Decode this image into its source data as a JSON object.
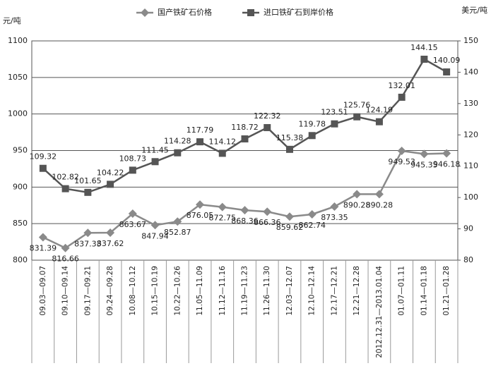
{
  "chart_data": {
    "type": "line",
    "y_axis_label": "元/吨",
    "y2_axis_label": "美元/吨",
    "categories": [
      "09.03—09.07",
      "09.10—09.14",
      "09.17—09.21",
      "09.24—09.28",
      "10.08—10.12",
      "10.15—10.19",
      "10.22—10.26",
      "11.05—11.09",
      "11.12—11.16",
      "11.19—11.23",
      "11.26—11.30",
      "12.03—12.07",
      "12.10—12.14",
      "12.17—12.21",
      "12.21—12.28",
      "2012.12.31—2013.01.04",
      "01.07—01.11",
      "01.14—01.18",
      "01.21—01.28"
    ],
    "series": [
      {
        "name": "国产铁矿石价格",
        "color": "#8a8a8a",
        "marker": "diamond",
        "values": [
          831.39,
          816.66,
          837.33,
          837.62,
          863.67,
          847.94,
          852.87,
          876.05,
          872.75,
          868.36,
          866.36,
          859.62,
          862.74,
          873.35,
          890.28,
          890.28,
          949.53,
          945.35,
          946.18
        ]
      },
      {
        "name": "进口铁矿石到岸价格",
        "color": "#555555",
        "marker": "square",
        "axis": "y2",
        "values": [
          109.32,
          102.82,
          101.65,
          104.22,
          108.73,
          111.45,
          114.28,
          117.79,
          114.12,
          118.72,
          122.32,
          115.38,
          119.78,
          123.51,
          125.76,
          124.19,
          132.01,
          144.15,
          140.09
        ]
      }
    ],
    "ylim": [
      800,
      1100
    ],
    "yticks": [
      800,
      850,
      900,
      950,
      1000,
      1050,
      1100
    ],
    "y2lim": [
      80,
      150
    ],
    "y2ticks": [
      80,
      90,
      100,
      110,
      120,
      130,
      140,
      150
    ],
    "grid": true
  }
}
